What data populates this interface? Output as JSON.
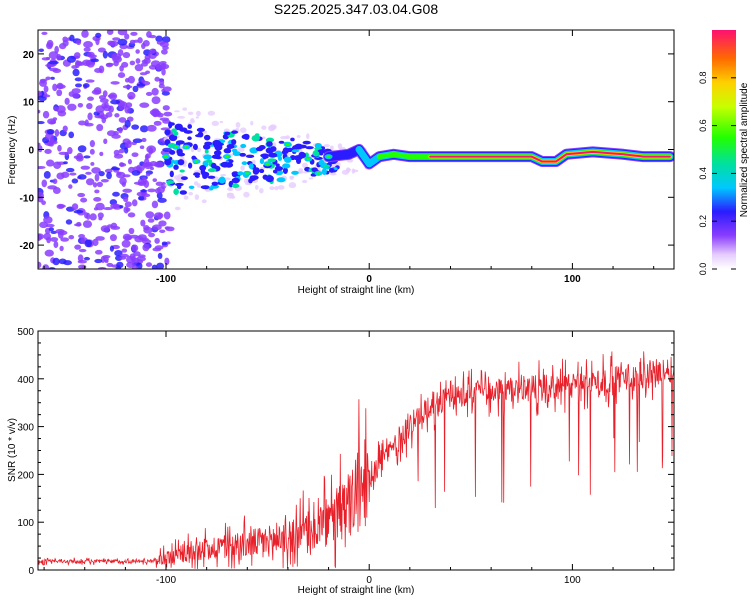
{
  "title": "S225.2025.347.03.04.G08",
  "colors": {
    "snr_line": "#e8202a",
    "cloud": "#8a3dff"
  },
  "chart_data": [
    {
      "type": "heatmap",
      "xlabel": "Height of straight line (km)",
      "ylabel": "Frequency (Hz)",
      "xlim": [
        -163,
        150
      ],
      "ylim": [
        -25,
        25
      ],
      "xticks": [
        -100,
        0,
        100
      ],
      "yticks": [
        20,
        10,
        0,
        -10,
        -20
      ],
      "colorbar": {
        "label": "Normalized spectral amplitude",
        "range": [
          0,
          1
        ],
        "ticks": [
          "0.0",
          "0.2",
          "0.4",
          "0.6",
          "0.8"
        ]
      },
      "ridge": [
        {
          "x": -100,
          "y": -1.5,
          "amp": 0.25
        },
        {
          "x": -95,
          "y": 0.5,
          "amp": 0.3
        },
        {
          "x": -90,
          "y": 0.5,
          "amp": 0.3
        },
        {
          "x": -85,
          "y": -2.5,
          "amp": 0.25
        },
        {
          "x": -70,
          "y": -1.5,
          "amp": 0.25
        },
        {
          "x": -60,
          "y": -5,
          "amp": 0.2
        },
        {
          "x": -50,
          "y": -3,
          "amp": 0.25
        },
        {
          "x": -40,
          "y": 1,
          "amp": 0.25
        },
        {
          "x": -30,
          "y": -2,
          "amp": 0.25
        },
        {
          "x": -25,
          "y": -5,
          "amp": 0.3
        },
        {
          "x": -20,
          "y": -1.5,
          "amp": 0.35
        },
        {
          "x": -10,
          "y": -1,
          "amp": 0.4
        },
        {
          "x": -5,
          "y": 0,
          "amp": 0.45
        },
        {
          "x": 0,
          "y": -3,
          "amp": 0.5
        },
        {
          "x": 5,
          "y": -1.5,
          "amp": 0.6
        },
        {
          "x": 12,
          "y": -1,
          "amp": 0.55
        },
        {
          "x": 20,
          "y": -1.5,
          "amp": 0.65
        },
        {
          "x": 30,
          "y": -1.5,
          "amp": 0.8
        },
        {
          "x": 80,
          "y": -1.5,
          "amp": 0.9
        },
        {
          "x": 85,
          "y": -2.5,
          "amp": 0.8
        },
        {
          "x": 92,
          "y": -2.5,
          "amp": 0.8
        },
        {
          "x": 97,
          "y": -1,
          "amp": 0.7
        },
        {
          "x": 110,
          "y": -0.5,
          "amp": 0.9
        },
        {
          "x": 125,
          "y": -1,
          "amp": 0.7
        },
        {
          "x": 135,
          "y": -1.5,
          "amp": 0.85
        },
        {
          "x": 148,
          "y": -1.5,
          "amp": 0.8
        }
      ]
    },
    {
      "type": "line",
      "xlabel": "Height of straight line (km)",
      "ylabel": "SNR (10 * v/v)",
      "xlim": [
        -163,
        150
      ],
      "ylim": [
        0,
        500
      ],
      "xticks": [
        -100,
        0,
        100
      ],
      "yticks": [
        0,
        100,
        200,
        300,
        400,
        500
      ],
      "trend": {
        "x": [
          -163,
          -110,
          -100,
          -90,
          -80,
          -70,
          -60,
          -50,
          -40,
          -30,
          -20,
          -10,
          0,
          10,
          20,
          30,
          40,
          50,
          60,
          80,
          100,
          120,
          150
        ],
        "y": [
          18,
          18,
          25,
          35,
          45,
          50,
          55,
          60,
          70,
          80,
          100,
          130,
          200,
          250,
          300,
          340,
          360,
          370,
          375,
          380,
          385,
          400,
          420
        ]
      }
    }
  ]
}
